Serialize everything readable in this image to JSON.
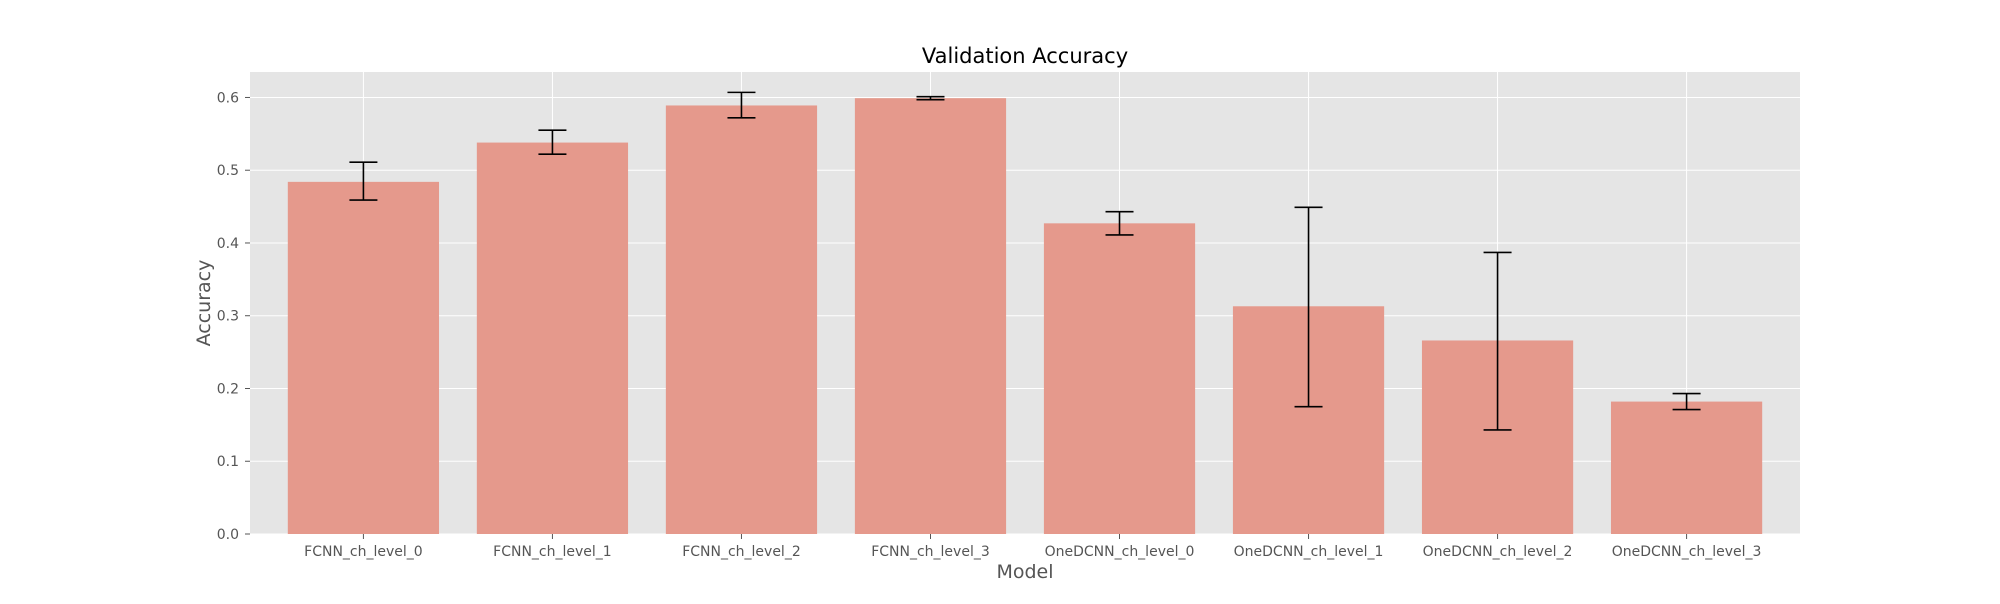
{
  "chart_data": {
    "type": "bar",
    "title": "Validation Accuracy",
    "xlabel": "Model",
    "ylabel": "Accuracy",
    "categories": [
      "FCNN_ch_level_0",
      "FCNN_ch_level_1",
      "FCNN_ch_level_2",
      "FCNN_ch_level_3",
      "OneDCNN_ch_level_0",
      "OneDCNN_ch_level_1",
      "OneDCNN_ch_level_2",
      "OneDCNN_ch_level_3"
    ],
    "values": [
      0.484,
      0.538,
      0.589,
      0.599,
      0.427,
      0.313,
      0.266,
      0.182
    ],
    "error_low": [
      0.459,
      0.522,
      0.572,
      0.597,
      0.411,
      0.175,
      0.143,
      0.171
    ],
    "error_high": [
      0.511,
      0.555,
      0.607,
      0.601,
      0.443,
      0.449,
      0.387,
      0.193
    ],
    "ylim": [
      0,
      0.635
    ],
    "yticks": [
      "0.0",
      "0.1",
      "0.2",
      "0.3",
      "0.4",
      "0.5",
      "0.6"
    ],
    "grid": true,
    "colors": {
      "bar": "#e5998c",
      "panel": "#e5e5e5",
      "grid": "#ffffff",
      "error_bar": "#000000",
      "text": "#000000",
      "tick_text": "#555555",
      "axis_label": "#555555"
    }
  }
}
